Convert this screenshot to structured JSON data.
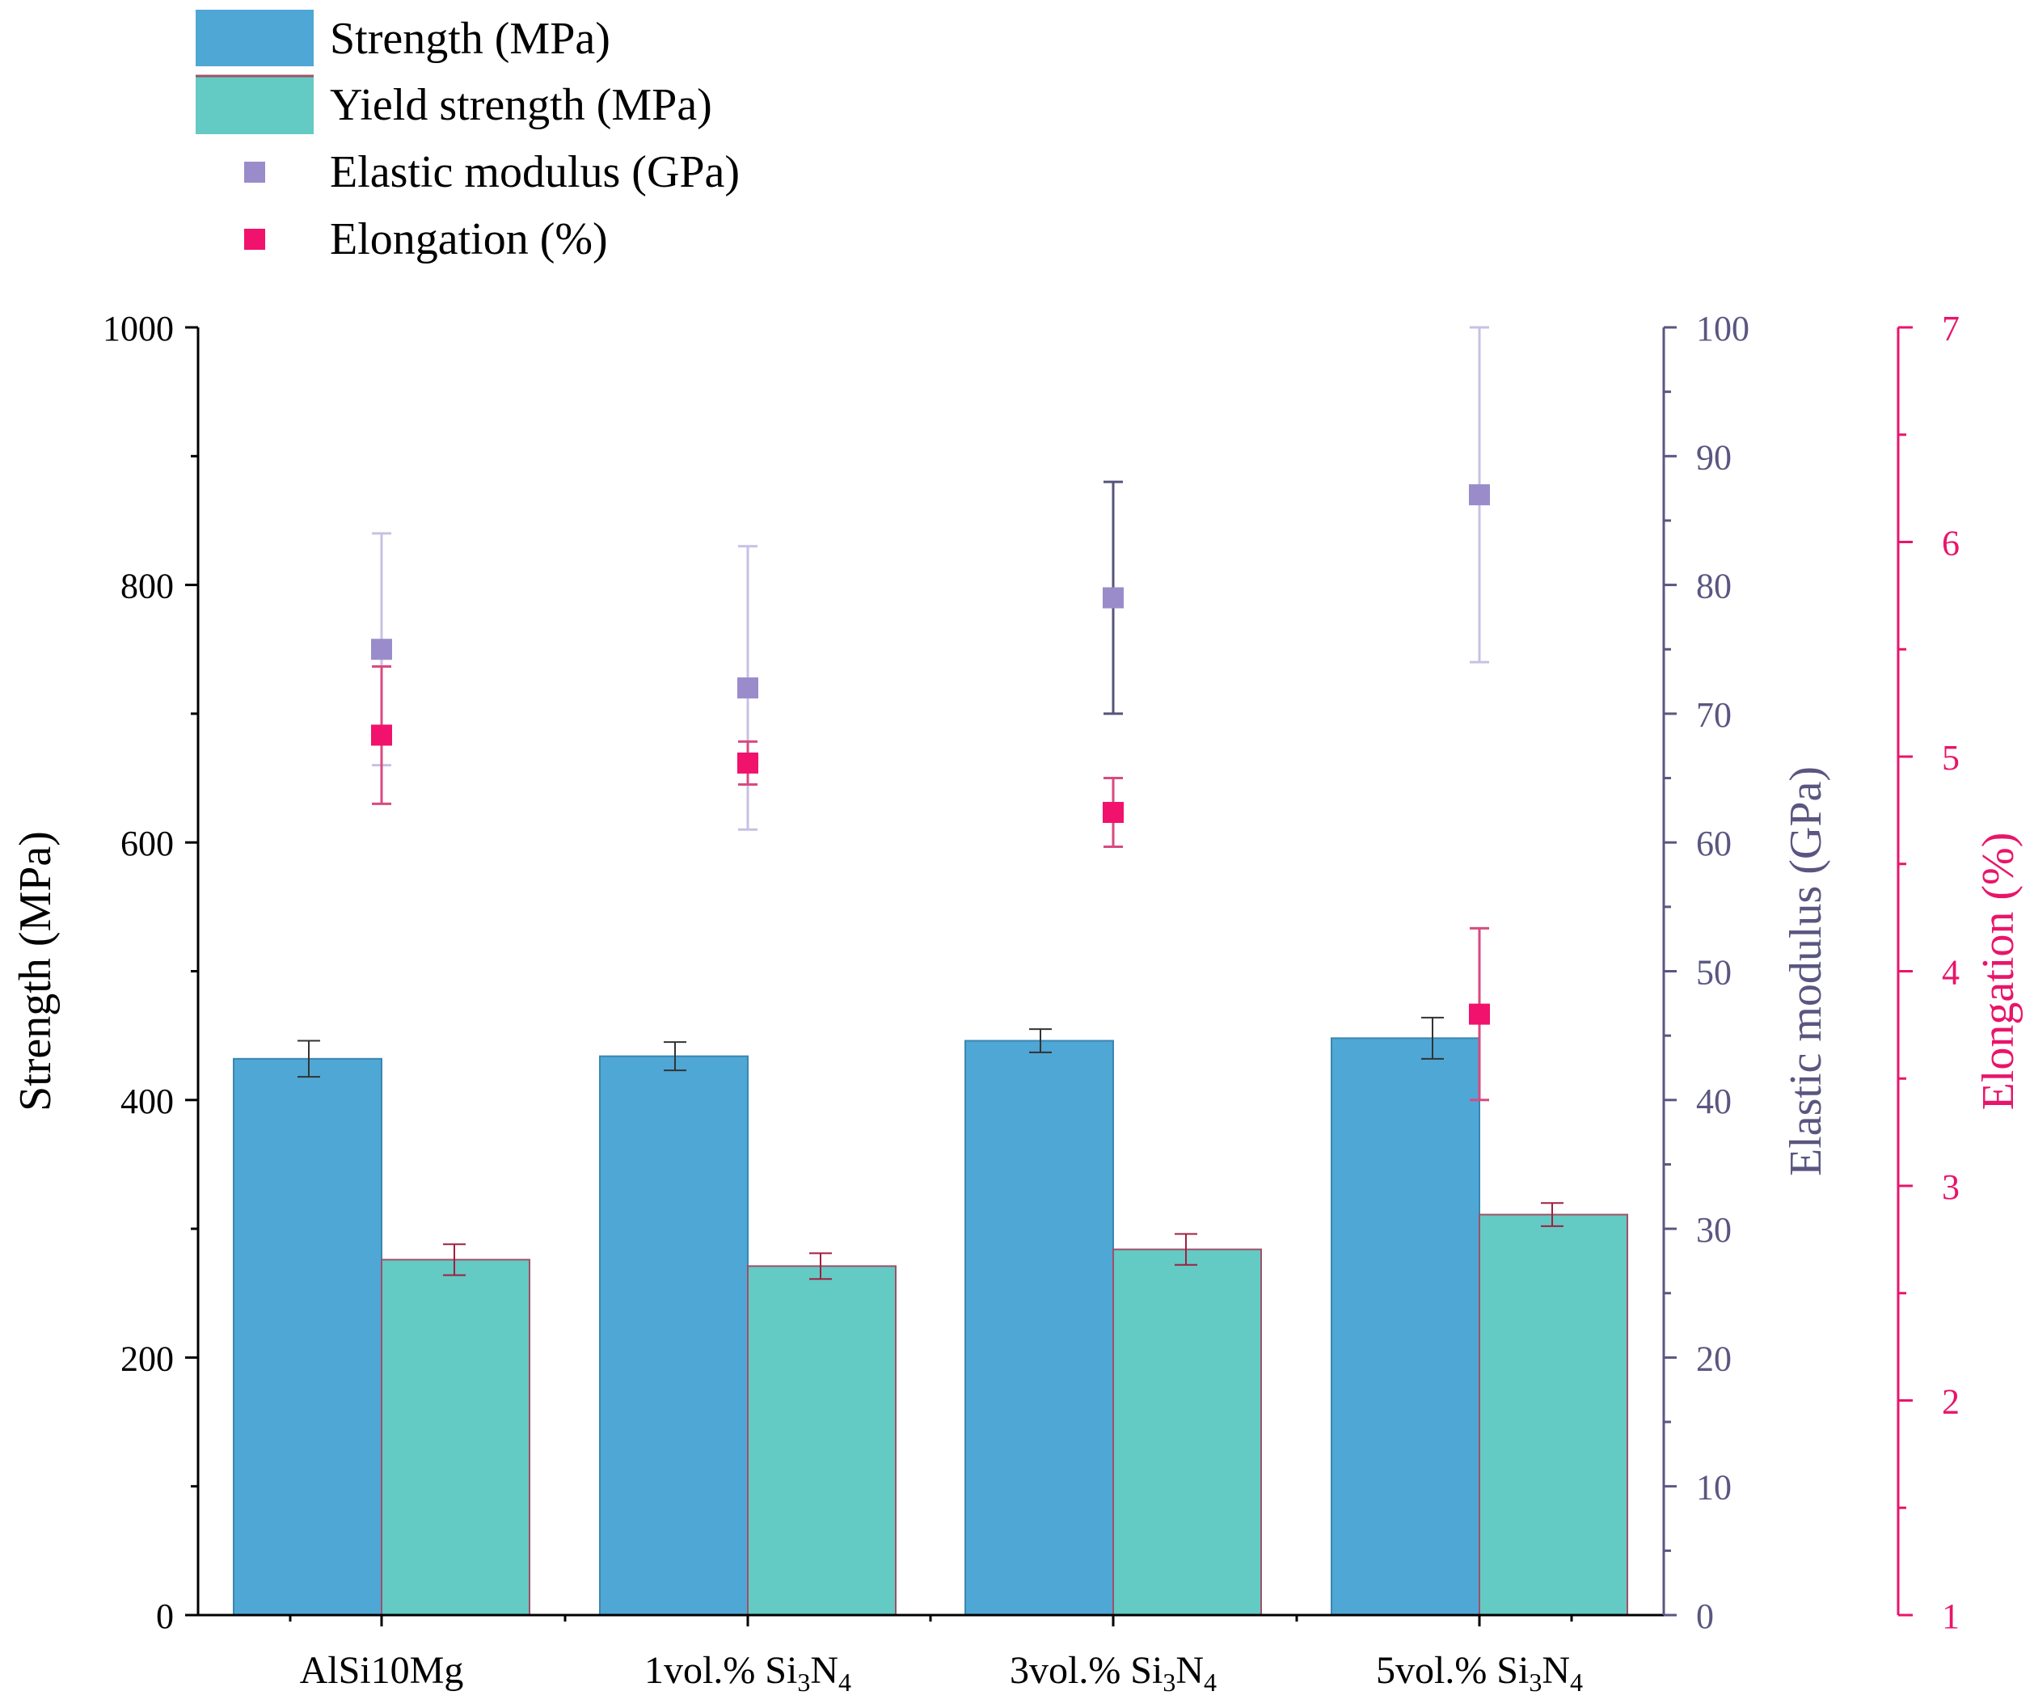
{
  "chart_data": {
    "type": "bar",
    "categories": [
      "AlSi10Mg",
      "1vol.% Si3N4",
      "3vol.% Si3N4",
      "5vol.% Si3N4"
    ],
    "category_labels": [
      {
        "main": "AlSi10Mg"
      },
      {
        "main": "1vol.% Si",
        "sub1": "3",
        "mid": "N",
        "sub2": "4"
      },
      {
        "main": "3vol.% Si",
        "sub1": "3",
        "mid": "N",
        "sub2": "4"
      },
      {
        "main": "5vol.% Si",
        "sub1": "3",
        "mid": "N",
        "sub2": "4"
      }
    ],
    "series": [
      {
        "name": "Strength (MPa)",
        "kind": "bar",
        "axis": "left",
        "color": "#4FA7D5",
        "values": [
          432,
          434,
          446,
          448
        ],
        "errors": [
          14,
          11,
          9,
          16
        ]
      },
      {
        "name": "Yield strength (MPa)",
        "kind": "bar",
        "axis": "left",
        "color": "#63CAC4",
        "values": [
          276,
          271,
          284,
          311
        ],
        "errors": [
          12,
          10,
          12,
          9
        ]
      },
      {
        "name": "Elastic modulus (GPa)",
        "kind": "scatter",
        "axis": "right1",
        "color": "#9A8CCB",
        "values": [
          75,
          72,
          79,
          87
        ],
        "errors": [
          9,
          11,
          9,
          13
        ]
      },
      {
        "name": "Elongation (%)",
        "kind": "scatter",
        "axis": "right2",
        "color": "#F0126C",
        "values": [
          5.1,
          4.97,
          4.74,
          3.8
        ],
        "errors": [
          0.32,
          0.1,
          0.16,
          0.4
        ]
      }
    ],
    "axes": {
      "left": {
        "label": "Strength (MPa)",
        "ylim": [
          0,
          1000
        ],
        "ticks": [
          "0",
          "200",
          "400",
          "600",
          "800",
          "1000"
        ]
      },
      "right1": {
        "label": "Elastic modulus (GPa)",
        "ylim": [
          0,
          100
        ],
        "ticks": [
          "0",
          "10",
          "20",
          "30",
          "40",
          "50",
          "60",
          "70",
          "80",
          "90",
          "100"
        ],
        "color": "#5A5680"
      },
      "right2": {
        "label": "Elongation (%)",
        "ylim": [
          1,
          7
        ],
        "ticks": [
          "1",
          "2",
          "3",
          "4",
          "5",
          "6",
          "7"
        ],
        "color": "#E8156A"
      }
    },
    "legend_position": "top-left",
    "grid": false
  }
}
